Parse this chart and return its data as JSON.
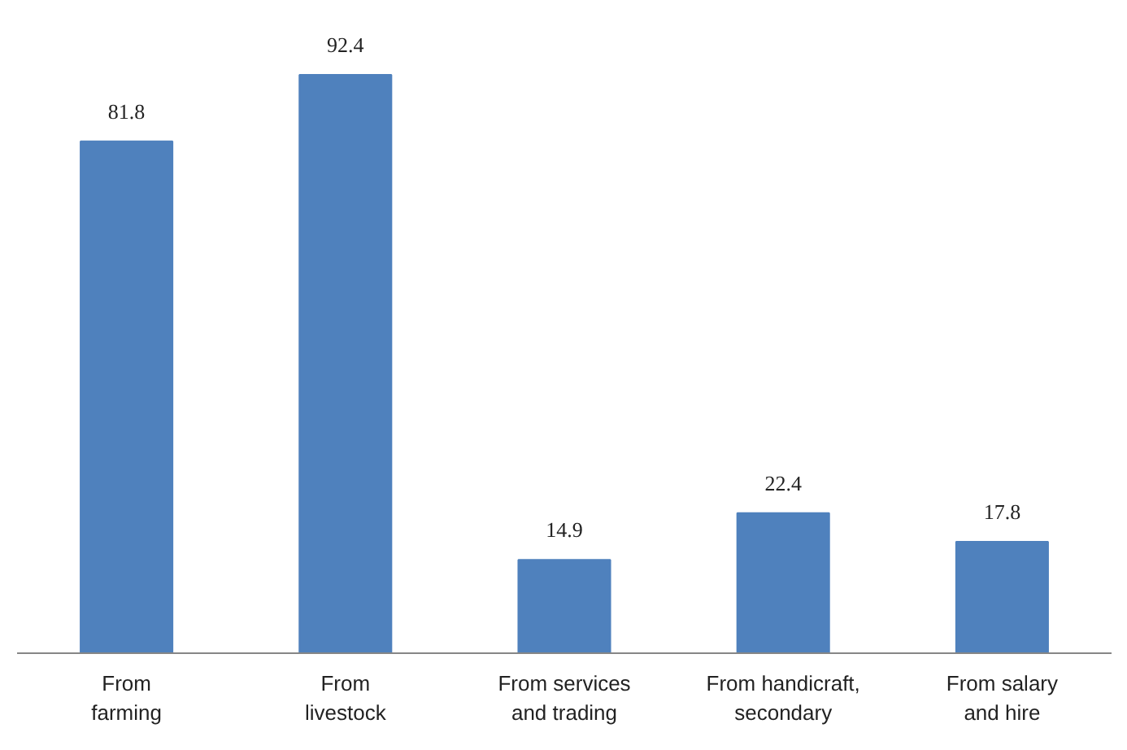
{
  "chart_data": {
    "type": "bar",
    "categories": [
      "From\nfarming",
      "From\nlivestock",
      "From services\nand trading",
      "From handicraft,\nsecondary",
      "From salary\nand hire"
    ],
    "values": [
      81.8,
      92.4,
      14.9,
      22.4,
      17.8
    ],
    "color": "#4f81bd",
    "data_labels": true,
    "grid": false
  }
}
